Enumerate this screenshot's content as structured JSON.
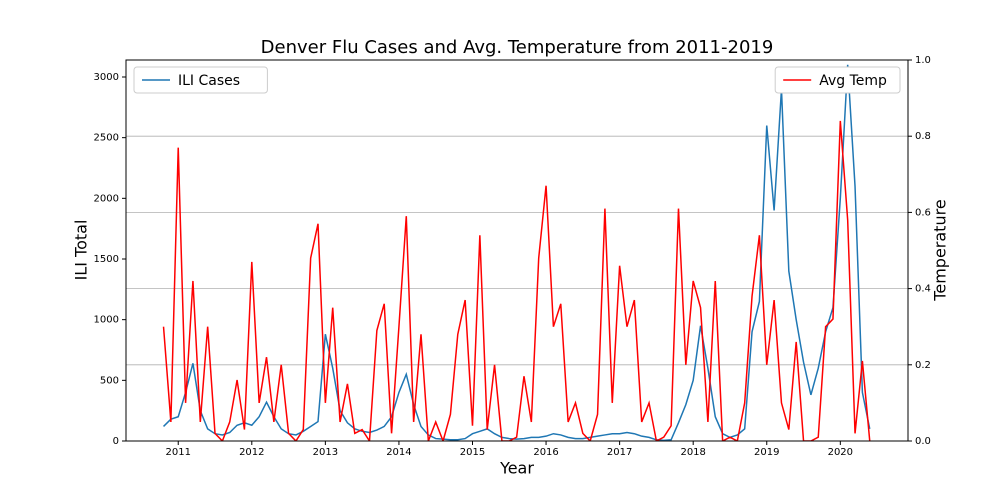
{
  "chart_data": {
    "type": "line",
    "title": "Denver Flu Cases and Avg. Temperature from 2011-2019",
    "xlabel": "Year",
    "ylabel": "ILI Total",
    "y2label": "Temperature",
    "x": [
      2010.8,
      2010.9,
      2011.0,
      2011.1,
      2011.2,
      2011.3,
      2011.4,
      2011.5,
      2011.6,
      2011.7,
      2011.8,
      2011.9,
      2012.0,
      2012.1,
      2012.2,
      2012.3,
      2012.4,
      2012.5,
      2012.6,
      2012.7,
      2012.8,
      2012.9,
      2013.0,
      2013.1,
      2013.2,
      2013.3,
      2013.4,
      2013.5,
      2013.6,
      2013.7,
      2013.8,
      2013.9,
      2014.0,
      2014.1,
      2014.2,
      2014.3,
      2014.4,
      2014.5,
      2014.6,
      2014.7,
      2014.8,
      2014.9,
      2015.0,
      2015.1,
      2015.2,
      2015.3,
      2015.4,
      2015.5,
      2015.6,
      2015.7,
      2015.8,
      2015.9,
      2016.0,
      2016.1,
      2016.2,
      2016.3,
      2016.4,
      2016.5,
      2016.6,
      2016.7,
      2016.8,
      2016.9,
      2017.0,
      2017.1,
      2017.2,
      2017.3,
      2017.4,
      2017.5,
      2017.6,
      2017.7,
      2017.8,
      2017.9,
      2018.0,
      2018.1,
      2018.2,
      2018.3,
      2018.4,
      2018.5,
      2018.6,
      2018.7,
      2018.8,
      2018.9,
      2019.0,
      2019.1,
      2019.2,
      2019.3,
      2019.4,
      2019.5,
      2019.6,
      2019.7,
      2019.8,
      2019.9,
      2020.0,
      2020.1,
      2020.2,
      2020.3,
      2020.4
    ],
    "series": [
      {
        "name": "ILI Cases",
        "color": "#1f77b4",
        "axis": "y",
        "legend_loc": "upper left",
        "values": [
          120,
          180,
          200,
          400,
          640,
          250,
          100,
          60,
          50,
          70,
          130,
          150,
          130,
          200,
          320,
          200,
          100,
          60,
          50,
          80,
          120,
          160,
          880,
          600,
          250,
          150,
          100,
          80,
          70,
          90,
          120,
          200,
          400,
          550,
          300,
          120,
          50,
          20,
          15,
          10,
          10,
          20,
          60,
          80,
          100,
          60,
          30,
          20,
          15,
          20,
          30,
          30,
          40,
          60,
          50,
          30,
          20,
          20,
          30,
          40,
          50,
          60,
          60,
          70,
          60,
          40,
          30,
          10,
          5,
          10,
          150,
          300,
          500,
          950,
          600,
          200,
          60,
          30,
          50,
          100,
          900,
          1150,
          2600,
          1900,
          2900,
          1400,
          1000,
          650,
          380,
          600,
          900,
          1100,
          2000,
          3100,
          2100,
          400,
          100
        ]
      },
      {
        "name": "Avg Temp",
        "color": "#ff0000",
        "axis": "y2",
        "legend_loc": "upper right",
        "values": [
          0.3,
          0.05,
          0.77,
          0.1,
          0.42,
          0.05,
          0.3,
          0.02,
          0,
          0.05,
          0.16,
          0.03,
          0.47,
          0.1,
          0.22,
          0.05,
          0.2,
          0.02,
          0,
          0.03,
          0.48,
          0.57,
          0.1,
          0.35,
          0.05,
          0.15,
          0.02,
          0.03,
          0,
          0.29,
          0.36,
          0.02,
          0.3,
          0.59,
          0.05,
          0.28,
          0,
          0.05,
          0,
          0.07,
          0.28,
          0.37,
          0.04,
          0.54,
          0.03,
          0.2,
          0,
          0,
          0.01,
          0.17,
          0.05,
          0.48,
          0.67,
          0.3,
          0.36,
          0.05,
          0.1,
          0.02,
          0,
          0.07,
          0.61,
          0.1,
          0.46,
          0.3,
          0.37,
          0.05,
          0.1,
          0,
          0.01,
          0.04,
          0.61,
          0.2,
          0.42,
          0.35,
          0.05,
          0.42,
          0,
          0.01,
          0,
          0.1,
          0.38,
          0.54,
          0.2,
          0.37,
          0.1,
          0.03,
          0.26,
          0,
          0,
          0.01,
          0.3,
          0.32,
          0.84,
          0.58,
          0.02,
          0.21,
          0
        ]
      }
    ],
    "xlim": [
      2010.29,
      2020.92
    ],
    "xticks": [
      2011,
      2012,
      2013,
      2014,
      2015,
      2016,
      2017,
      2018,
      2019,
      2020
    ],
    "ylim": [
      0,
      3140
    ],
    "yticks": [
      0,
      500,
      1000,
      1500,
      2000,
      2500,
      3000
    ],
    "y2lim": [
      0,
      1
    ],
    "y2ticks": [
      {
        "value": 0,
        "label": "0.0"
      },
      0.2,
      0.4,
      0.6,
      0.8,
      {
        "value": 1,
        "label": "1.0"
      }
    ],
    "grid": "y2"
  }
}
